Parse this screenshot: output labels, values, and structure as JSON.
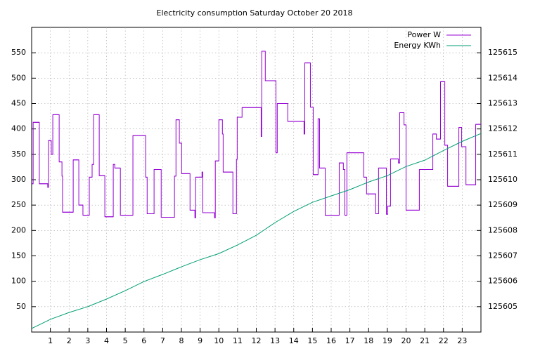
{
  "chart_data": {
    "type": "line",
    "title": "Electricity consumption Saturday October 20 2018",
    "xlim": [
      0,
      24
    ],
    "xticks": [
      1,
      2,
      3,
      4,
      5,
      6,
      7,
      8,
      9,
      10,
      11,
      12,
      13,
      14,
      15,
      16,
      17,
      18,
      19,
      20,
      21,
      22,
      23
    ],
    "ylim": [
      0,
      600
    ],
    "yticks": [
      50,
      100,
      150,
      200,
      250,
      300,
      350,
      400,
      450,
      500,
      550
    ],
    "y2lim": [
      125604,
      125616
    ],
    "y2ticks": [
      125605,
      125606,
      125607,
      125608,
      125609,
      125610,
      125611,
      125612,
      125613,
      125614,
      125615
    ],
    "grid": true,
    "legend": "top-right",
    "series": [
      {
        "name": "Power W",
        "color": "#9400d3",
        "step": true,
        "x": [
          0,
          0.08,
          0.41,
          0.86,
          0.9,
          1.05,
          1.13,
          1.47,
          1.62,
          1.65,
          2.22,
          2.52,
          2.74,
          3.08,
          3.23,
          3.31,
          3.61,
          3.91,
          4.36,
          4.44,
          4.74,
          5.41,
          6.09,
          6.17,
          6.54,
          6.92,
          7.63,
          7.71,
          7.89,
          8.01,
          8.46,
          8.72,
          8.76,
          9.1,
          9.14,
          9.77,
          9.81,
          10.0,
          10.19,
          10.23,
          10.75,
          10.94,
          10.98,
          11.24,
          12.26,
          12.29,
          12.48,
          13.05,
          13.12,
          13.68,
          14.55,
          14.59,
          14.89,
          15.04,
          15.3,
          15.38,
          15.68,
          16.43,
          16.65,
          16.73,
          16.84,
          17.74,
          17.89,
          18.38,
          18.53,
          18.95,
          19.02,
          19.17,
          19.59,
          19.66,
          19.89,
          20.0,
          20.71,
          21.43,
          21.62,
          21.84,
          22.07,
          22.22,
          22.82,
          22.97,
          23.2,
          23.72
        ],
        "values": [
          292,
          413,
          292,
          285,
          377,
          350,
          428,
          335,
          307,
          236,
          339,
          250,
          230,
          305,
          330,
          428,
          308,
          227,
          330,
          323,
          230,
          387,
          305,
          233,
          320,
          226,
          307,
          418,
          372,
          312,
          240,
          225,
          305,
          315,
          235,
          225,
          337,
          418,
          390,
          315,
          233,
          340,
          423,
          442,
          385,
          553,
          495,
          353,
          450,
          415,
          390,
          530,
          443,
          310,
          420,
          323,
          230,
          333,
          320,
          230,
          353,
          305,
          272,
          233,
          323,
          232,
          248,
          341,
          333,
          432,
          408,
          240,
          320,
          390,
          380,
          493,
          368,
          287,
          403,
          365,
          290,
          409
        ]
      },
      {
        "name": "Energy KWh",
        "color": "#009e73",
        "axis": "y2",
        "x": [
          0,
          1,
          2,
          3,
          4,
          5,
          6,
          7,
          8,
          9,
          10,
          11,
          12,
          13,
          14,
          15,
          16,
          17,
          18,
          19,
          20,
          21,
          22,
          23,
          24
        ],
        "values": [
          125604.14,
          125604.5,
          125604.77,
          125605.0,
          125605.3,
          125605.63,
          125605.99,
          125606.27,
          125606.57,
          125606.85,
          125607.09,
          125607.43,
          125607.81,
          125608.31,
          125608.75,
          125609.11,
          125609.36,
          125609.61,
          125609.91,
          125610.16,
          125610.52,
          125610.77,
          125611.15,
          125611.51,
          125611.82
        ]
      }
    ]
  }
}
